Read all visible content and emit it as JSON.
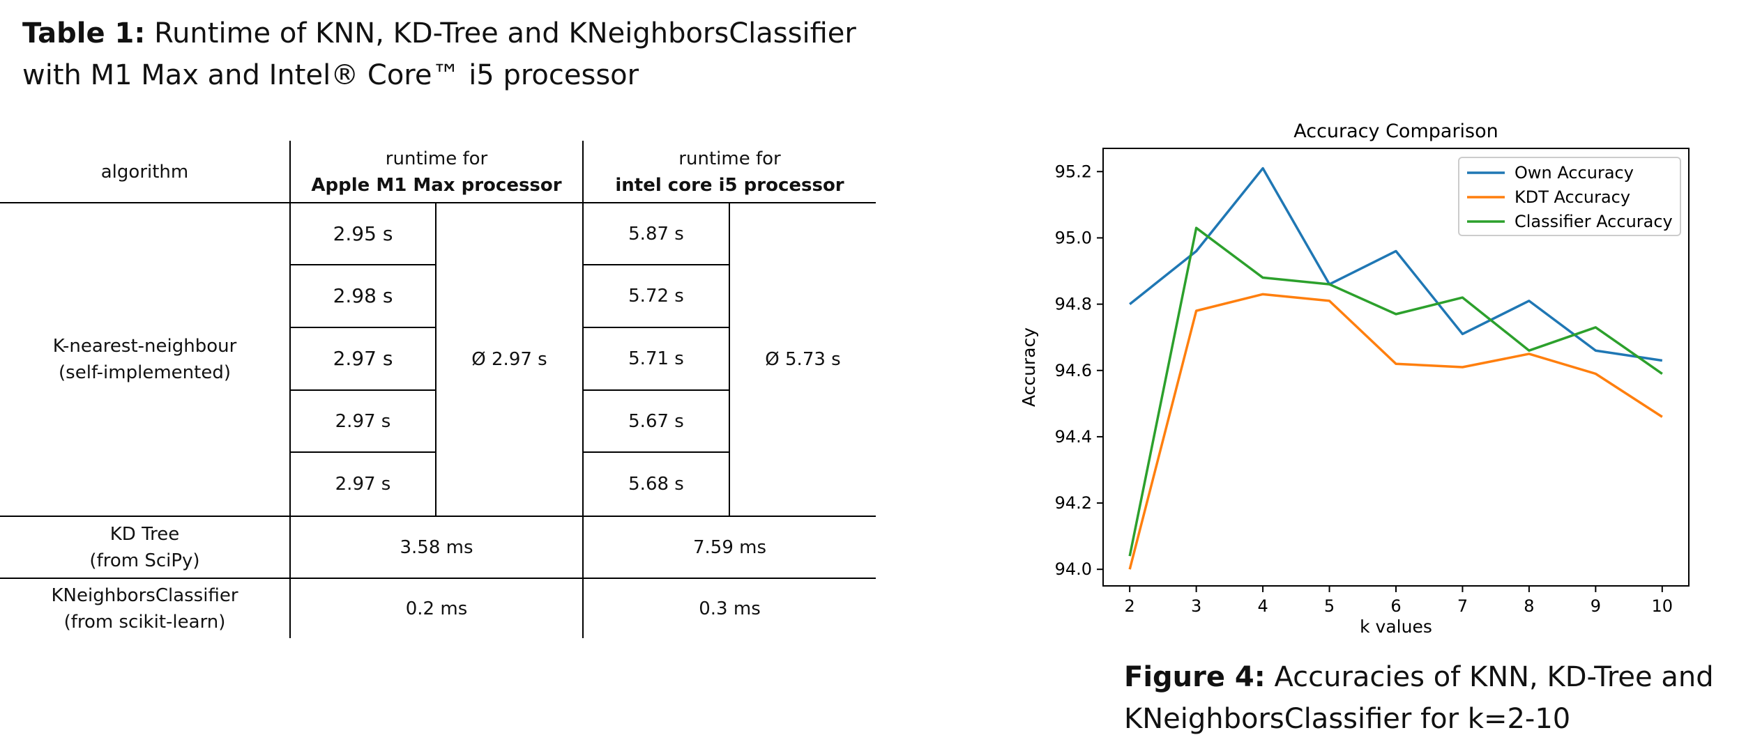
{
  "table": {
    "caption_label": "Table 1:",
    "caption_line1": " Runtime of KNN, KD-Tree and KNeighborsClassifier",
    "caption_line2": "with M1 Max and Intel® Core™ i5 processor",
    "header": {
      "algorithm": "algorithm",
      "m1_line1": "runtime for",
      "m1_line2": "Apple M1 Max processor",
      "i5_line1": "runtime for",
      "i5_line2": "intel core i5 processor"
    },
    "knn": {
      "name_line1": "K-nearest-neighbour",
      "name_line2": "(self-implemented)",
      "m1_runs": [
        "2.95 s",
        "2.98 s",
        "2.97 s",
        "2.97 s",
        "2.97 s"
      ],
      "m1_avg": "Ø 2.97 s",
      "i5_runs": [
        "5.87 s",
        "5.72 s",
        "5.71 s",
        "5.67 s",
        "5.68 s"
      ],
      "i5_avg": "Ø 5.73 s"
    },
    "kdtree": {
      "name_line1": "KD Tree",
      "name_line2": "(from SciPy)",
      "m1": "3.58 ms",
      "i5": "7.59 ms"
    },
    "kneighbors": {
      "name_line1": "KNeighborsClassifier",
      "name_line2": "(from scikit-learn)",
      "m1": "0.2 ms",
      "i5": "0.3 ms"
    }
  },
  "figure": {
    "caption_label": "Figure 4:",
    "caption_line1": " Accuracies of KNN, KD-Tree and",
    "caption_line2": "KNeighborsClassifier for k=2-10"
  },
  "chart_data": {
    "type": "line",
    "title": "Accuracy Comparison",
    "xlabel": "k values",
    "ylabel": "Accuracy",
    "x": [
      2,
      3,
      4,
      5,
      6,
      7,
      8,
      9,
      10
    ],
    "xlim": [
      1.6,
      10.4
    ],
    "ylim": [
      93.95,
      95.27
    ],
    "xticks": [
      2,
      3,
      4,
      5,
      6,
      7,
      8,
      9,
      10
    ],
    "yticks": [
      "94.0",
      "94.2",
      "94.4",
      "94.6",
      "94.8",
      "95.0",
      "95.2"
    ],
    "grid": false,
    "legend_position": "top-right",
    "series": [
      {
        "name": "Own Accuracy",
        "color": "#1f77b4",
        "values": [
          94.8,
          94.96,
          95.21,
          94.86,
          94.96,
          94.71,
          94.81,
          94.66,
          94.63
        ]
      },
      {
        "name": "KDT Accuracy",
        "color": "#ff7f0e",
        "values": [
          94.0,
          94.78,
          94.83,
          94.81,
          94.62,
          94.61,
          94.65,
          94.59,
          94.46
        ]
      },
      {
        "name": "Classifier Accuracy",
        "color": "#2ca02c",
        "values": [
          94.04,
          95.03,
          94.88,
          94.86,
          94.77,
          94.82,
          94.66,
          94.73,
          94.59
        ]
      }
    ]
  }
}
